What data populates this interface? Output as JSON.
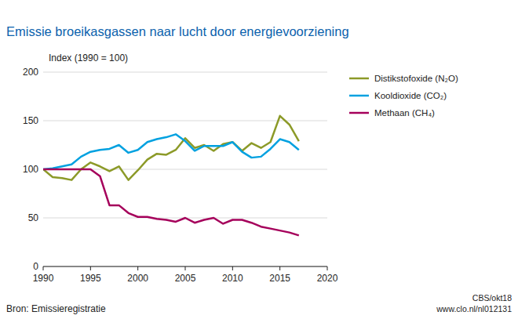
{
  "chart_data": {
    "type": "line",
    "title": "Emissie broeikasgassen naar lucht door energievoorziening",
    "y_label": "Index (1990 = 100)",
    "x": [
      1990,
      1991,
      1992,
      1993,
      1994,
      1995,
      1996,
      1997,
      1998,
      1999,
      2000,
      2001,
      2002,
      2003,
      2004,
      2005,
      2006,
      2007,
      2008,
      2009,
      2010,
      2011,
      2012,
      2013,
      2014,
      2015,
      2016,
      2017
    ],
    "series": [
      {
        "name": "Distikstofoxide (N₂O)",
        "color": "#8c9a28",
        "values": [
          100,
          92,
          91,
          89,
          100,
          107,
          103,
          98,
          103,
          89,
          99,
          110,
          116,
          115,
          120,
          132,
          122,
          125,
          119,
          126,
          128,
          119,
          127,
          122,
          128,
          155,
          146,
          129
        ]
      },
      {
        "name": "Kooldioxide (CO₂)",
        "color": "#00a1e0",
        "values": [
          100,
          101,
          103,
          105,
          113,
          118,
          120,
          121,
          125,
          117,
          120,
          128,
          131,
          133,
          136,
          129,
          119,
          124,
          124,
          124,
          128,
          118,
          112,
          113,
          121,
          131,
          128,
          120
        ]
      },
      {
        "name": "Methaan (CH₄)",
        "color": "#a5005b",
        "values": [
          100,
          100,
          100,
          100,
          100,
          100,
          93,
          63,
          63,
          55,
          51,
          51,
          49,
          48,
          46,
          50,
          45,
          48,
          50,
          44,
          48,
          48,
          45,
          41,
          39,
          37,
          35,
          32
        ]
      }
    ],
    "xlim": [
      1990,
      2020
    ],
    "xticks": [
      1990,
      1995,
      2000,
      2005,
      2010,
      2015,
      2020
    ],
    "ylim": [
      0,
      200
    ],
    "yticks": [
      0,
      50,
      100,
      150,
      200
    ],
    "grid": true,
    "legend": "right",
    "source": "Bron: Emissieregistratie",
    "credit": [
      "CBS/okt18",
      "www.clo.nl/nl012131"
    ]
  }
}
